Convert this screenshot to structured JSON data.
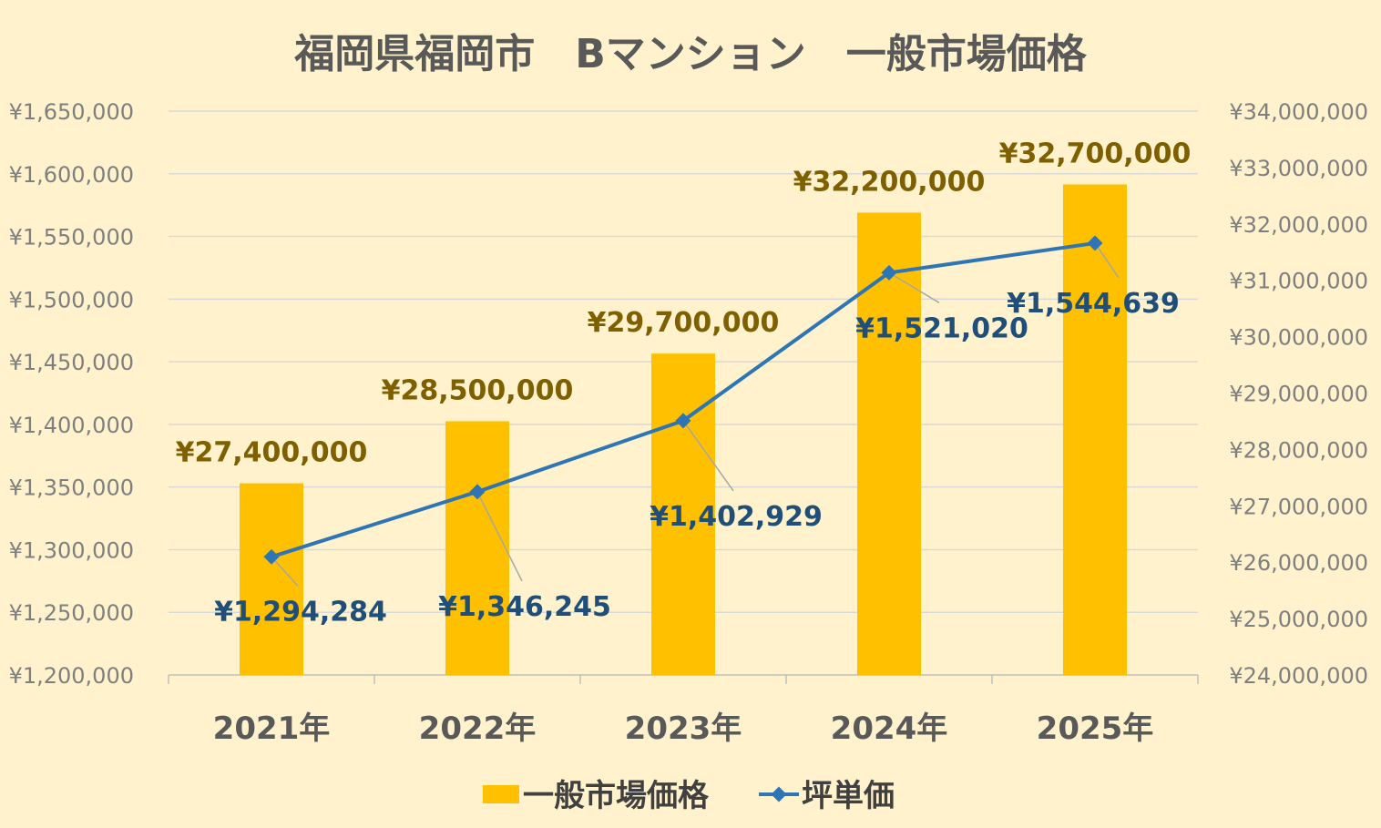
{
  "chart_data": {
    "type": "bar",
    "title": "福岡県福岡市　Bマンション　一般市場価格",
    "categories": [
      "2021年",
      "2022年",
      "2023年",
      "2024年",
      "2025年"
    ],
    "series": [
      {
        "name": "一般市場価格",
        "type": "bar",
        "axis": "right",
        "color": "#FFC000",
        "values": [
          27400000,
          28500000,
          29700000,
          32200000,
          32700000
        ],
        "labels": [
          "¥27,400,000",
          "¥28,500,000",
          "¥29,700,000",
          "¥32,200,000",
          "¥32,700,000"
        ]
      },
      {
        "name": "坪単価",
        "type": "line",
        "axis": "left",
        "color": "#2E75B6",
        "values": [
          1294284,
          1346245,
          1402929,
          1521020,
          1544639
        ],
        "labels": [
          "¥1,294,284",
          "¥1,346,245",
          "¥1,402,929",
          "¥1,521,020",
          "¥1,544,639"
        ]
      }
    ],
    "y_left": {
      "ylim": [
        1200000,
        1650000
      ],
      "ticks": [
        1200000,
        1250000,
        1300000,
        1350000,
        1400000,
        1450000,
        1500000,
        1550000,
        1600000,
        1650000
      ],
      "tick_labels": [
        "¥1,200,000",
        "¥1,250,000",
        "¥1,300,000",
        "¥1,350,000",
        "¥1,400,000",
        "¥1,450,000",
        "¥1,500,000",
        "¥1,550,000",
        "¥1,600,000",
        "¥1,650,000"
      ]
    },
    "y_right": {
      "ylim": [
        24000000,
        34000000
      ],
      "ticks": [
        24000000,
        25000000,
        26000000,
        27000000,
        28000000,
        29000000,
        30000000,
        31000000,
        32000000,
        33000000,
        34000000
      ],
      "tick_labels": [
        "¥24,000,000",
        "¥25,000,000",
        "¥26,000,000",
        "¥27,000,000",
        "¥28,000,000",
        "¥29,000,000",
        "¥30,000,000",
        "¥31,000,000",
        "¥32,000,000",
        "¥33,000,000",
        "¥34,000,000"
      ]
    },
    "grid": true,
    "legend": "bottom",
    "background_color": "#FFF2CC"
  }
}
